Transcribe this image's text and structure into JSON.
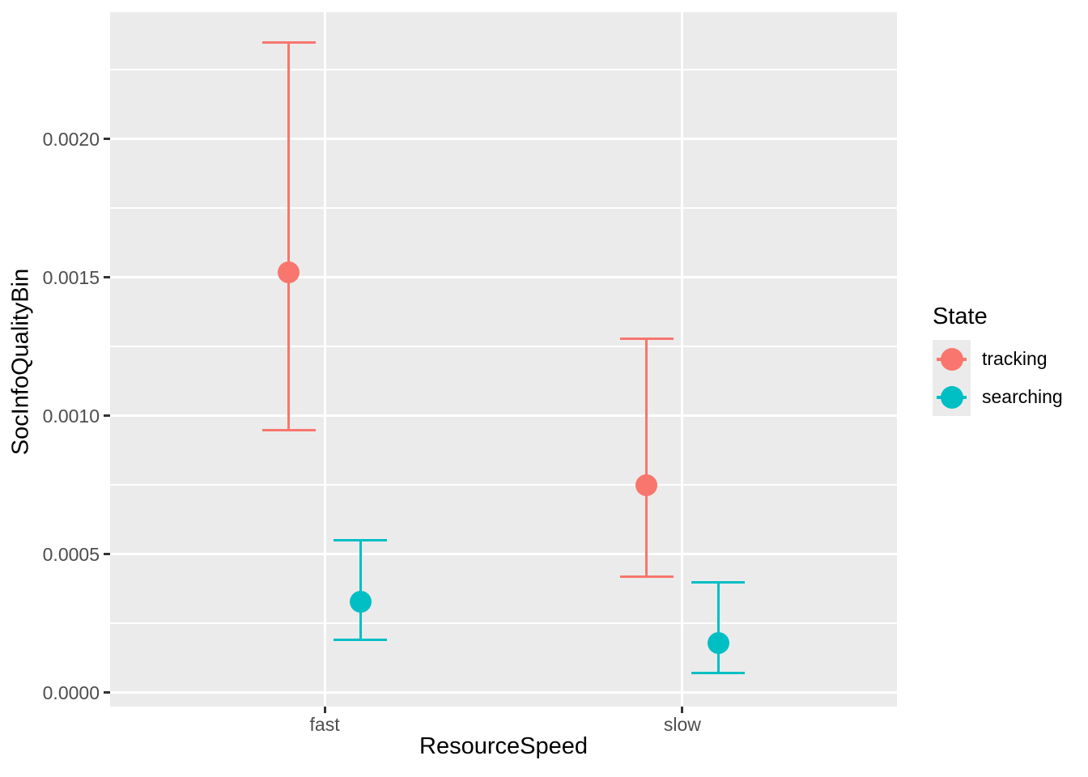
{
  "chart_data": {
    "type": "pointrange",
    "title": "",
    "xlabel": "ResourceSpeed",
    "ylabel": "SocInfoQualityBin",
    "categories": [
      "fast",
      "slow"
    ],
    "series": [
      {
        "name": "tracking",
        "color": "#F8766D",
        "points": [
          {
            "x": "fast",
            "y": 0.00152,
            "ymin": 0.00095,
            "ymax": 0.00235
          },
          {
            "x": "slow",
            "y": 0.00075,
            "ymin": 0.00042,
            "ymax": 0.00128
          }
        ]
      },
      {
        "name": "searching",
        "color": "#00BFC4",
        "points": [
          {
            "x": "fast",
            "y": 0.00033,
            "ymin": 0.00019,
            "ymax": 0.00055
          },
          {
            "x": "slow",
            "y": 0.00018,
            "ymin": 7e-05,
            "ymax": 0.0004
          }
        ]
      }
    ],
    "y_axis": {
      "ticks": [
        {
          "value": 0.0,
          "label": "0.0000"
        },
        {
          "value": 0.0005,
          "label": "0.0005"
        },
        {
          "value": 0.001,
          "label": "0.0010"
        },
        {
          "value": 0.0015,
          "label": "0.0015"
        },
        {
          "value": 0.002,
          "label": "0.0020"
        }
      ],
      "minor_ticks": [
        0.00025,
        0.00075,
        0.00125,
        0.00175,
        0.00225
      ],
      "ylim": [
        -5e-05,
        0.002459
      ]
    },
    "legend": {
      "title": "State",
      "position": "right",
      "entries": [
        {
          "label": "tracking",
          "color": "#F8766D"
        },
        {
          "label": "searching",
          "color": "#00BFC4"
        }
      ]
    },
    "style": {
      "panel_bg": "#EBEBEB",
      "grid_color": "#FFFFFF",
      "tick_color": "#333333",
      "axis_text_color": "#4D4D4D",
      "title_color": "#000000"
    }
  }
}
